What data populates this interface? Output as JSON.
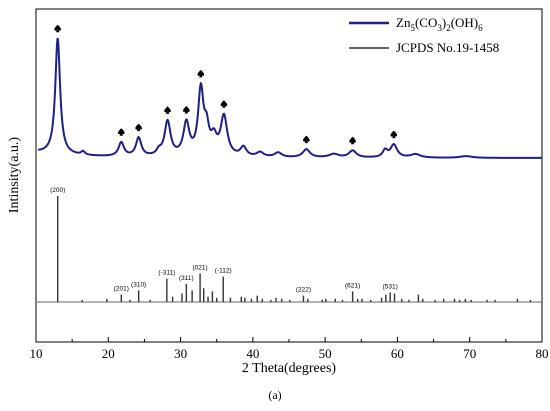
{
  "chart_data": {
    "type": "line",
    "xlabel": "2 Theta(degrees)",
    "ylabel": "Intinsity(a.u.)",
    "xlim": [
      10,
      80
    ],
    "x_ticks": [
      10,
      20,
      30,
      40,
      50,
      60,
      70,
      80
    ],
    "caption": "(a)",
    "legend": {
      "placement": "top-right",
      "entries": [
        {
          "base": "Zn",
          "sub1": "5",
          "mid1": "(CO",
          "sub2": "3",
          "mid2": ")",
          "sub3": "2",
          "mid3": "(OH)",
          "sub4": "6",
          "color": "#1f1f8a"
        },
        {
          "text": "JCPDS No.19-1458",
          "color": "#333333"
        }
      ]
    },
    "pattern": {
      "color": "#1f1f8a",
      "baseline": 5,
      "peaks": [
        {
          "x": 13.0,
          "h": 100,
          "w": 0.4,
          "marked": true
        },
        {
          "x": 16.5,
          "h": 3,
          "w": 0.3,
          "marked": false
        },
        {
          "x": 21.8,
          "h": 12,
          "w": 0.45,
          "marked": true
        },
        {
          "x": 24.2,
          "h": 16,
          "w": 0.45,
          "marked": true
        },
        {
          "x": 27.0,
          "h": 4,
          "w": 0.4,
          "marked": false
        },
        {
          "x": 28.2,
          "h": 30,
          "w": 0.5,
          "marked": true
        },
        {
          "x": 30.8,
          "h": 28,
          "w": 0.5,
          "marked": true
        },
        {
          "x": 32.8,
          "h": 56,
          "w": 0.45,
          "marked": true
        },
        {
          "x": 33.6,
          "h": 20,
          "w": 0.4,
          "marked": false
        },
        {
          "x": 34.6,
          "h": 14,
          "w": 0.5,
          "marked": false
        },
        {
          "x": 36.0,
          "h": 34,
          "w": 0.55,
          "marked": true
        },
        {
          "x": 38.7,
          "h": 8,
          "w": 0.5,
          "marked": false
        },
        {
          "x": 41.0,
          "h": 4,
          "w": 0.6,
          "marked": false
        },
        {
          "x": 43.5,
          "h": 4,
          "w": 0.6,
          "marked": false
        },
        {
          "x": 47.4,
          "h": 7,
          "w": 0.6,
          "marked": true
        },
        {
          "x": 51.2,
          "h": 3,
          "w": 0.8,
          "marked": false
        },
        {
          "x": 53.8,
          "h": 6,
          "w": 0.6,
          "marked": true
        },
        {
          "x": 58.3,
          "h": 6,
          "w": 0.4,
          "marked": false
        },
        {
          "x": 59.5,
          "h": 11,
          "w": 0.55,
          "marked": true
        },
        {
          "x": 62.5,
          "h": 3,
          "w": 0.8,
          "marked": false
        },
        {
          "x": 69.5,
          "h": 1.5,
          "w": 1.0,
          "marked": false
        }
      ]
    },
    "reference": {
      "source": "JCPDS No.19-1458",
      "color": "#333333",
      "lines": [
        {
          "x": 13.0,
          "h": 100,
          "label": "(200)"
        },
        {
          "x": 16.4,
          "h": 2
        },
        {
          "x": 19.8,
          "h": 3
        },
        {
          "x": 21.8,
          "h": 7,
          "label": "(201)"
        },
        {
          "x": 23.0,
          "h": 2
        },
        {
          "x": 24.2,
          "h": 11,
          "label": "(310)"
        },
        {
          "x": 25.8,
          "h": 2
        },
        {
          "x": 28.1,
          "h": 22,
          "label": "(-311)"
        },
        {
          "x": 28.9,
          "h": 5
        },
        {
          "x": 30.2,
          "h": 8
        },
        {
          "x": 30.8,
          "h": 17,
          "label": "(311)"
        },
        {
          "x": 31.6,
          "h": 11
        },
        {
          "x": 32.7,
          "h": 27,
          "label": "(021)"
        },
        {
          "x": 33.2,
          "h": 13
        },
        {
          "x": 33.8,
          "h": 5
        },
        {
          "x": 34.4,
          "h": 10
        },
        {
          "x": 35.0,
          "h": 4
        },
        {
          "x": 35.9,
          "h": 24,
          "label": "(-112)"
        },
        {
          "x": 36.9,
          "h": 4
        },
        {
          "x": 38.4,
          "h": 5
        },
        {
          "x": 38.9,
          "h": 4
        },
        {
          "x": 39.8,
          "h": 3
        },
        {
          "x": 40.6,
          "h": 6
        },
        {
          "x": 41.3,
          "h": 3
        },
        {
          "x": 42.5,
          "h": 2
        },
        {
          "x": 43.2,
          "h": 4
        },
        {
          "x": 44.0,
          "h": 3
        },
        {
          "x": 45.1,
          "h": 2
        },
        {
          "x": 47.0,
          "h": 6,
          "label": "(222)"
        },
        {
          "x": 47.6,
          "h": 3
        },
        {
          "x": 49.6,
          "h": 2
        },
        {
          "x": 50.1,
          "h": 3
        },
        {
          "x": 51.4,
          "h": 3
        },
        {
          "x": 52.4,
          "h": 2
        },
        {
          "x": 53.8,
          "h": 10,
          "label": "(621)"
        },
        {
          "x": 54.5,
          "h": 3
        },
        {
          "x": 55.1,
          "h": 3
        },
        {
          "x": 56.3,
          "h": 2
        },
        {
          "x": 57.8,
          "h": 4
        },
        {
          "x": 58.4,
          "h": 7
        },
        {
          "x": 59.0,
          "h": 9,
          "label": "(531)"
        },
        {
          "x": 59.6,
          "h": 8
        },
        {
          "x": 60.6,
          "h": 3
        },
        {
          "x": 61.6,
          "h": 2
        },
        {
          "x": 62.9,
          "h": 7
        },
        {
          "x": 63.5,
          "h": 3
        },
        {
          "x": 65.2,
          "h": 2
        },
        {
          "x": 66.4,
          "h": 3
        },
        {
          "x": 67.9,
          "h": 3
        },
        {
          "x": 68.6,
          "h": 2
        },
        {
          "x": 69.4,
          "h": 3
        },
        {
          "x": 70.2,
          "h": 2
        },
        {
          "x": 72.4,
          "h": 2
        },
        {
          "x": 73.5,
          "h": 2
        },
        {
          "x": 76.6,
          "h": 3
        },
        {
          "x": 78.4,
          "h": 2
        }
      ]
    }
  }
}
